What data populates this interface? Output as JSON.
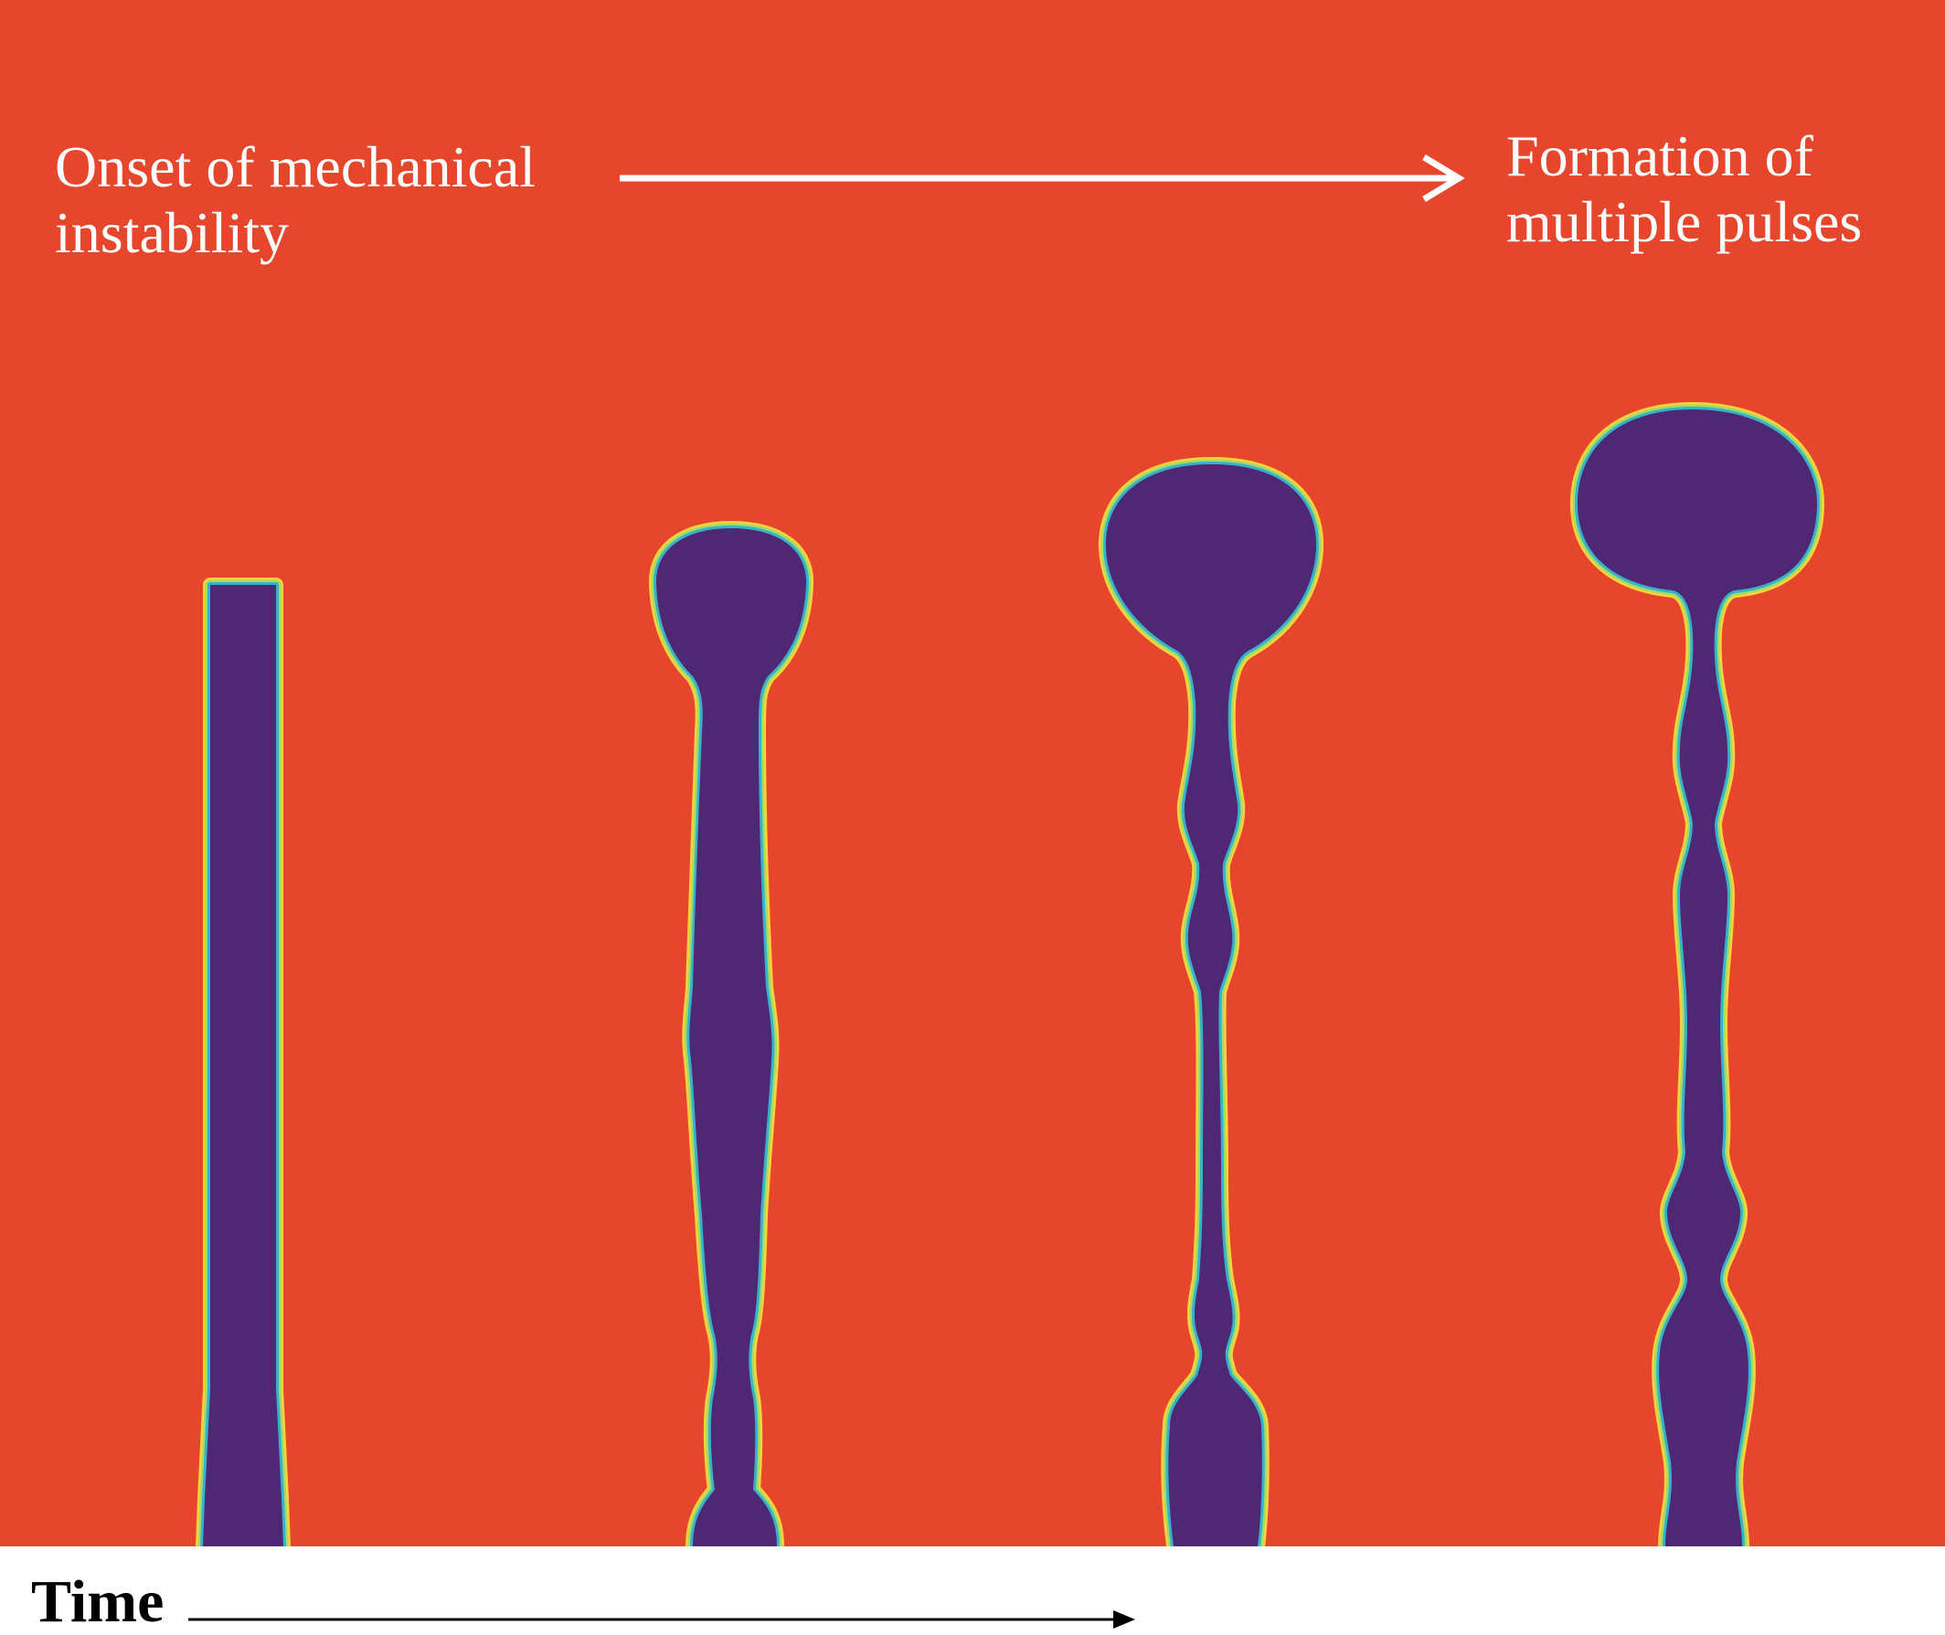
{
  "annotations": {
    "start_line1": "Onset of mechanical",
    "start_line2": "instability",
    "end_line1": "Formation of",
    "end_line2": "multiple pulses"
  },
  "axis": {
    "label": "Time"
  },
  "colors": {
    "background": "#e5462c",
    "pulse_fill": "#4e2873",
    "outline_outer": "#ffd23a",
    "outline_mid": "#9fdc6a",
    "outline_inner": "#37b3c9",
    "text": "#ffffff",
    "time_axis": "#000000"
  }
}
